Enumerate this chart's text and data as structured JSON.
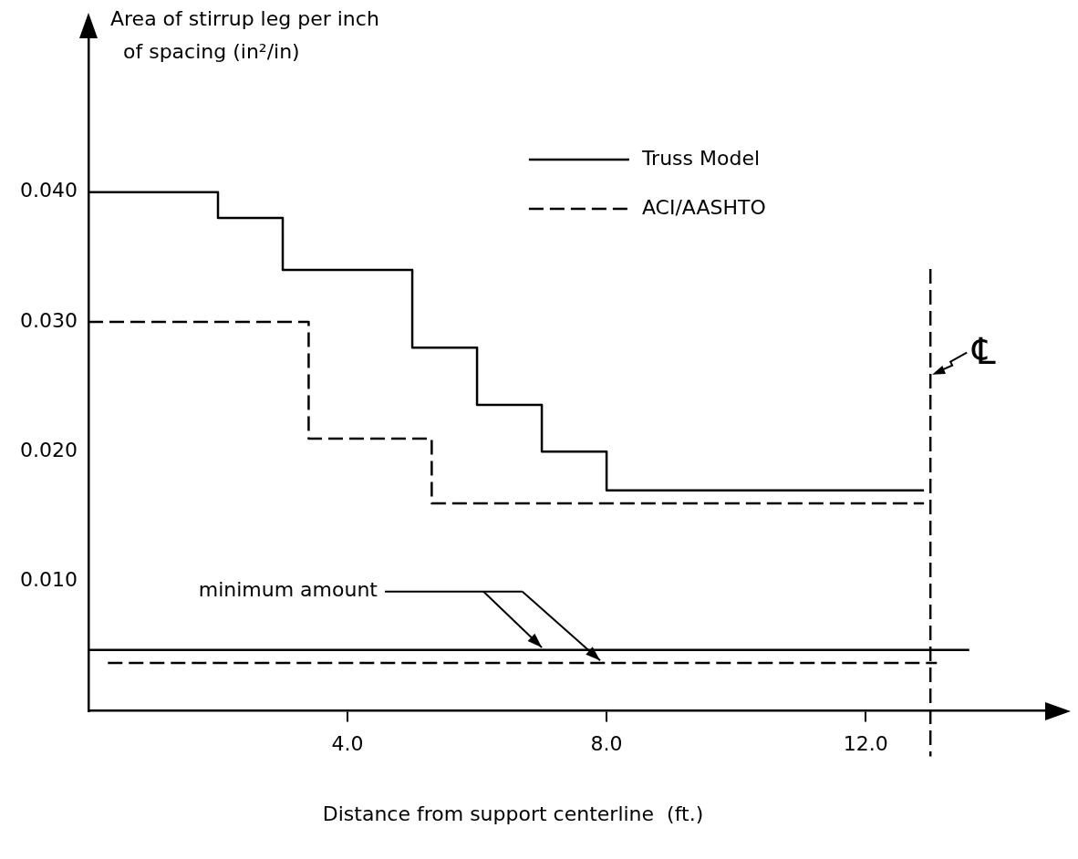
{
  "chart_data": {
    "type": "step",
    "ylabel": "Area of stirrup leg per inch\nof spacing (in²/in)",
    "xlabel": "Distance from support centerline  (ft.)",
    "xlim": [
      0,
      14.8
    ],
    "ylim": [
      0,
      0.052
    ],
    "xticks": [
      {
        "value": 4,
        "label": "4.0"
      },
      {
        "value": 8,
        "label": "8.0"
      },
      {
        "value": 12,
        "label": "12.0"
      }
    ],
    "yticks": [
      {
        "value": 0.01,
        "label": "0.010"
      },
      {
        "value": 0.02,
        "label": "0.020"
      },
      {
        "value": 0.03,
        "label": "0.030"
      },
      {
        "value": 0.04,
        "label": "0.040"
      }
    ],
    "grid": false,
    "legend": "top right",
    "series": [
      {
        "name": "Truss Model",
        "color": "#000000",
        "line_style": "solid",
        "x": [
          0,
          2,
          3,
          5,
          6,
          7,
          8,
          12.9
        ],
        "values": [
          0.04,
          0.038,
          0.034,
          0.028,
          0.0236,
          0.02,
          0.017,
          0.017
        ]
      },
      {
        "name": "ACI/AASHTO",
        "color": "#000000",
        "line_style": "dashed",
        "x": [
          0,
          3.4,
          5.3,
          12.9
        ],
        "values": [
          0.03,
          0.021,
          0.016,
          0.016
        ]
      },
      {
        "type": "line",
        "color": "#000000",
        "line_style": "solid",
        "x": [
          0,
          13.6
        ],
        "values": [
          0.0047,
          0.0047
        ]
      },
      {
        "type": "line",
        "color": "#000000",
        "line_style": "dashed",
        "x": [
          0.3,
          13.1
        ],
        "values": [
          0.0037,
          0.0037
        ]
      }
    ],
    "ref_lines": [
      {
        "axis": "x",
        "value": 13,
        "label": "℄",
        "line_style": "dashed",
        "color": "#000000"
      }
    ],
    "annotations": [
      "minimum amount"
    ]
  }
}
